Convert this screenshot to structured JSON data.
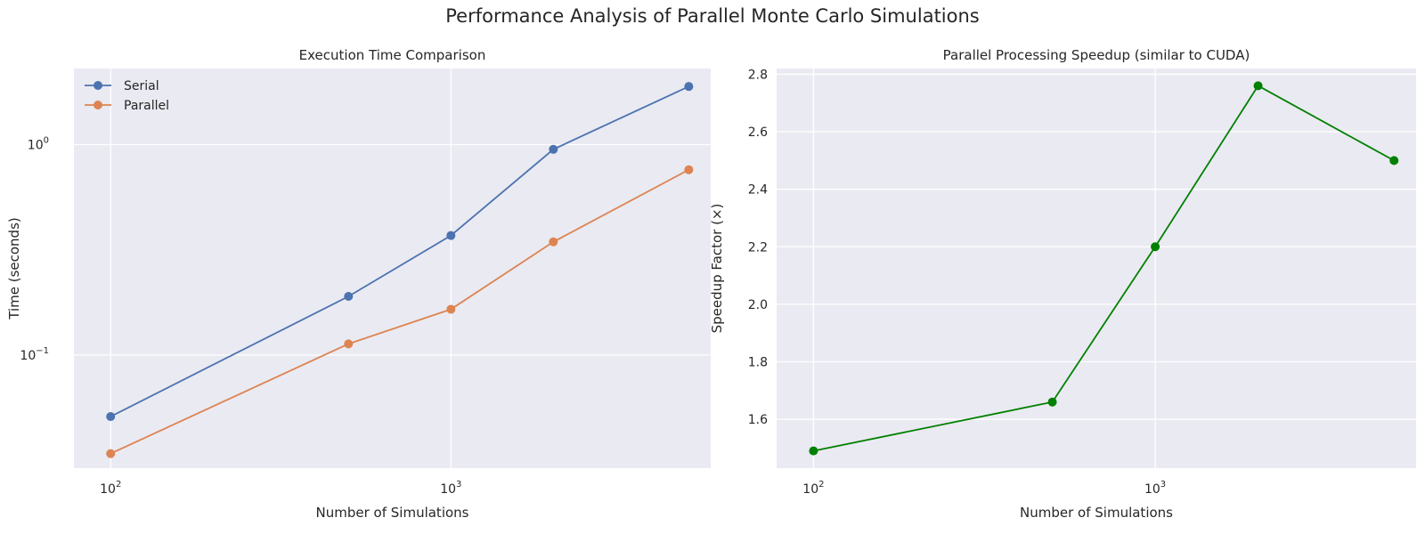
{
  "suptitle": "Performance Analysis of Parallel Monte Carlo Simulations",
  "chart_data": [
    {
      "type": "line",
      "title": "Execution Time Comparison",
      "xlabel": "Number of Simulations",
      "ylabel": "Time (seconds)",
      "xscale": "log",
      "yscale": "log",
      "x": [
        100,
        500,
        1000,
        2000,
        5000
      ],
      "xlim": [
        78,
        5800
      ],
      "ylim": [
        0.029,
        2.3
      ],
      "xticks": [
        {
          "value": 100,
          "base": "10",
          "exp": "2"
        },
        {
          "value": 1000,
          "base": "10",
          "exp": "3"
        }
      ],
      "yticks": [
        {
          "value": 0.1,
          "base": "10",
          "exp": "−1"
        },
        {
          "value": 1,
          "base": "10",
          "exp": "0"
        }
      ],
      "grid": true,
      "legend_position": "upper-left",
      "series": [
        {
          "name": "Serial",
          "color": "#4c72b0",
          "values": [
            0.051,
            0.19,
            0.37,
            0.95,
            1.89
          ]
        },
        {
          "name": "Parallel",
          "color": "#dd8452",
          "values": [
            0.034,
            0.113,
            0.165,
            0.345,
            0.76
          ]
        }
      ]
    },
    {
      "type": "line",
      "title": "Parallel Processing Speedup (similar to CUDA)",
      "xlabel": "Number of Simulations",
      "ylabel": "Speedup Factor (×)",
      "xscale": "log",
      "yscale": "linear",
      "x": [
        100,
        500,
        1000,
        2000,
        5000
      ],
      "xlim": [
        78,
        5800
      ],
      "ylim": [
        1.43,
        2.82
      ],
      "xticks": [
        {
          "value": 100,
          "base": "10",
          "exp": "2"
        },
        {
          "value": 1000,
          "base": "10",
          "exp": "3"
        }
      ],
      "yticks": [
        {
          "value": 1.6,
          "label": "1.6"
        },
        {
          "value": 1.8,
          "label": "1.8"
        },
        {
          "value": 2.0,
          "label": "2.0"
        },
        {
          "value": 2.2,
          "label": "2.2"
        },
        {
          "value": 2.4,
          "label": "2.4"
        },
        {
          "value": 2.6,
          "label": "2.6"
        },
        {
          "value": 2.8,
          "label": "2.8"
        }
      ],
      "grid": true,
      "series": [
        {
          "color": "#008000",
          "values": [
            1.49,
            1.66,
            2.2,
            2.76,
            2.5
          ]
        }
      ]
    }
  ]
}
